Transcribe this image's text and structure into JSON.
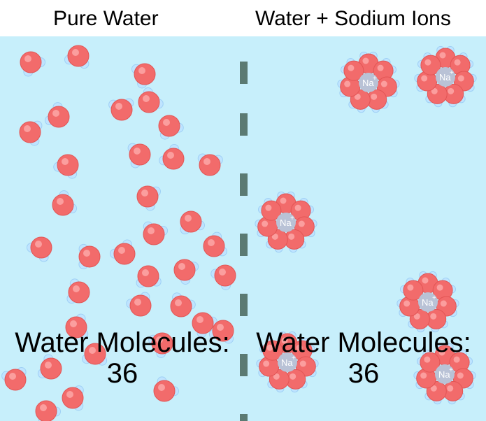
{
  "left_panel": {
    "title": "Pure Water",
    "count_label": "Water Molecules:",
    "count_value": "36"
  },
  "right_panel": {
    "title": "Water + Sodium Ions",
    "count_label": "Water Molecules:",
    "count_value": "36",
    "ion_label": "Na",
    "ion_charge": "+"
  },
  "colors": {
    "water_background": "#c7effb",
    "oxygen": "#f26b6b",
    "hydrogen": "#bfe4ff",
    "sodium": "#b9c2d6",
    "barrier": "#5b7a72"
  }
}
